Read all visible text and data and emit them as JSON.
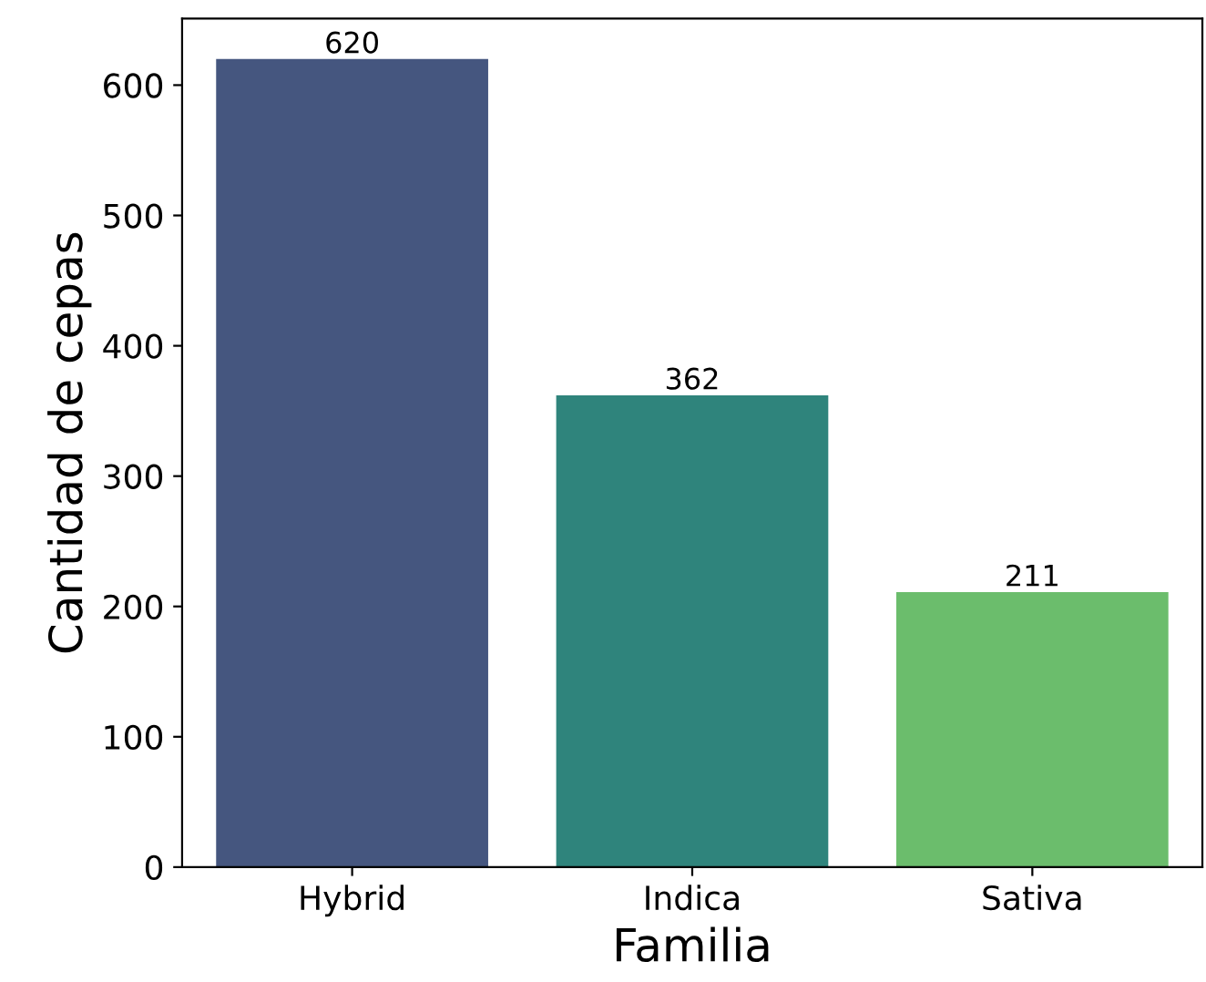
{
  "chart_data": {
    "type": "bar",
    "xlabel": "Familia",
    "ylabel": "Cantidad de cepas",
    "categories": [
      "Hybrid",
      "Indica",
      "Sativa"
    ],
    "values": [
      620,
      362,
      211
    ],
    "colors": [
      "#45567f",
      "#2f847c",
      "#6bbd6c"
    ],
    "ylim": [
      0,
      651
    ],
    "yticks": [
      0,
      100,
      200,
      300,
      400,
      500,
      600
    ],
    "data_labels": true,
    "grid": false,
    "legend": false
  }
}
